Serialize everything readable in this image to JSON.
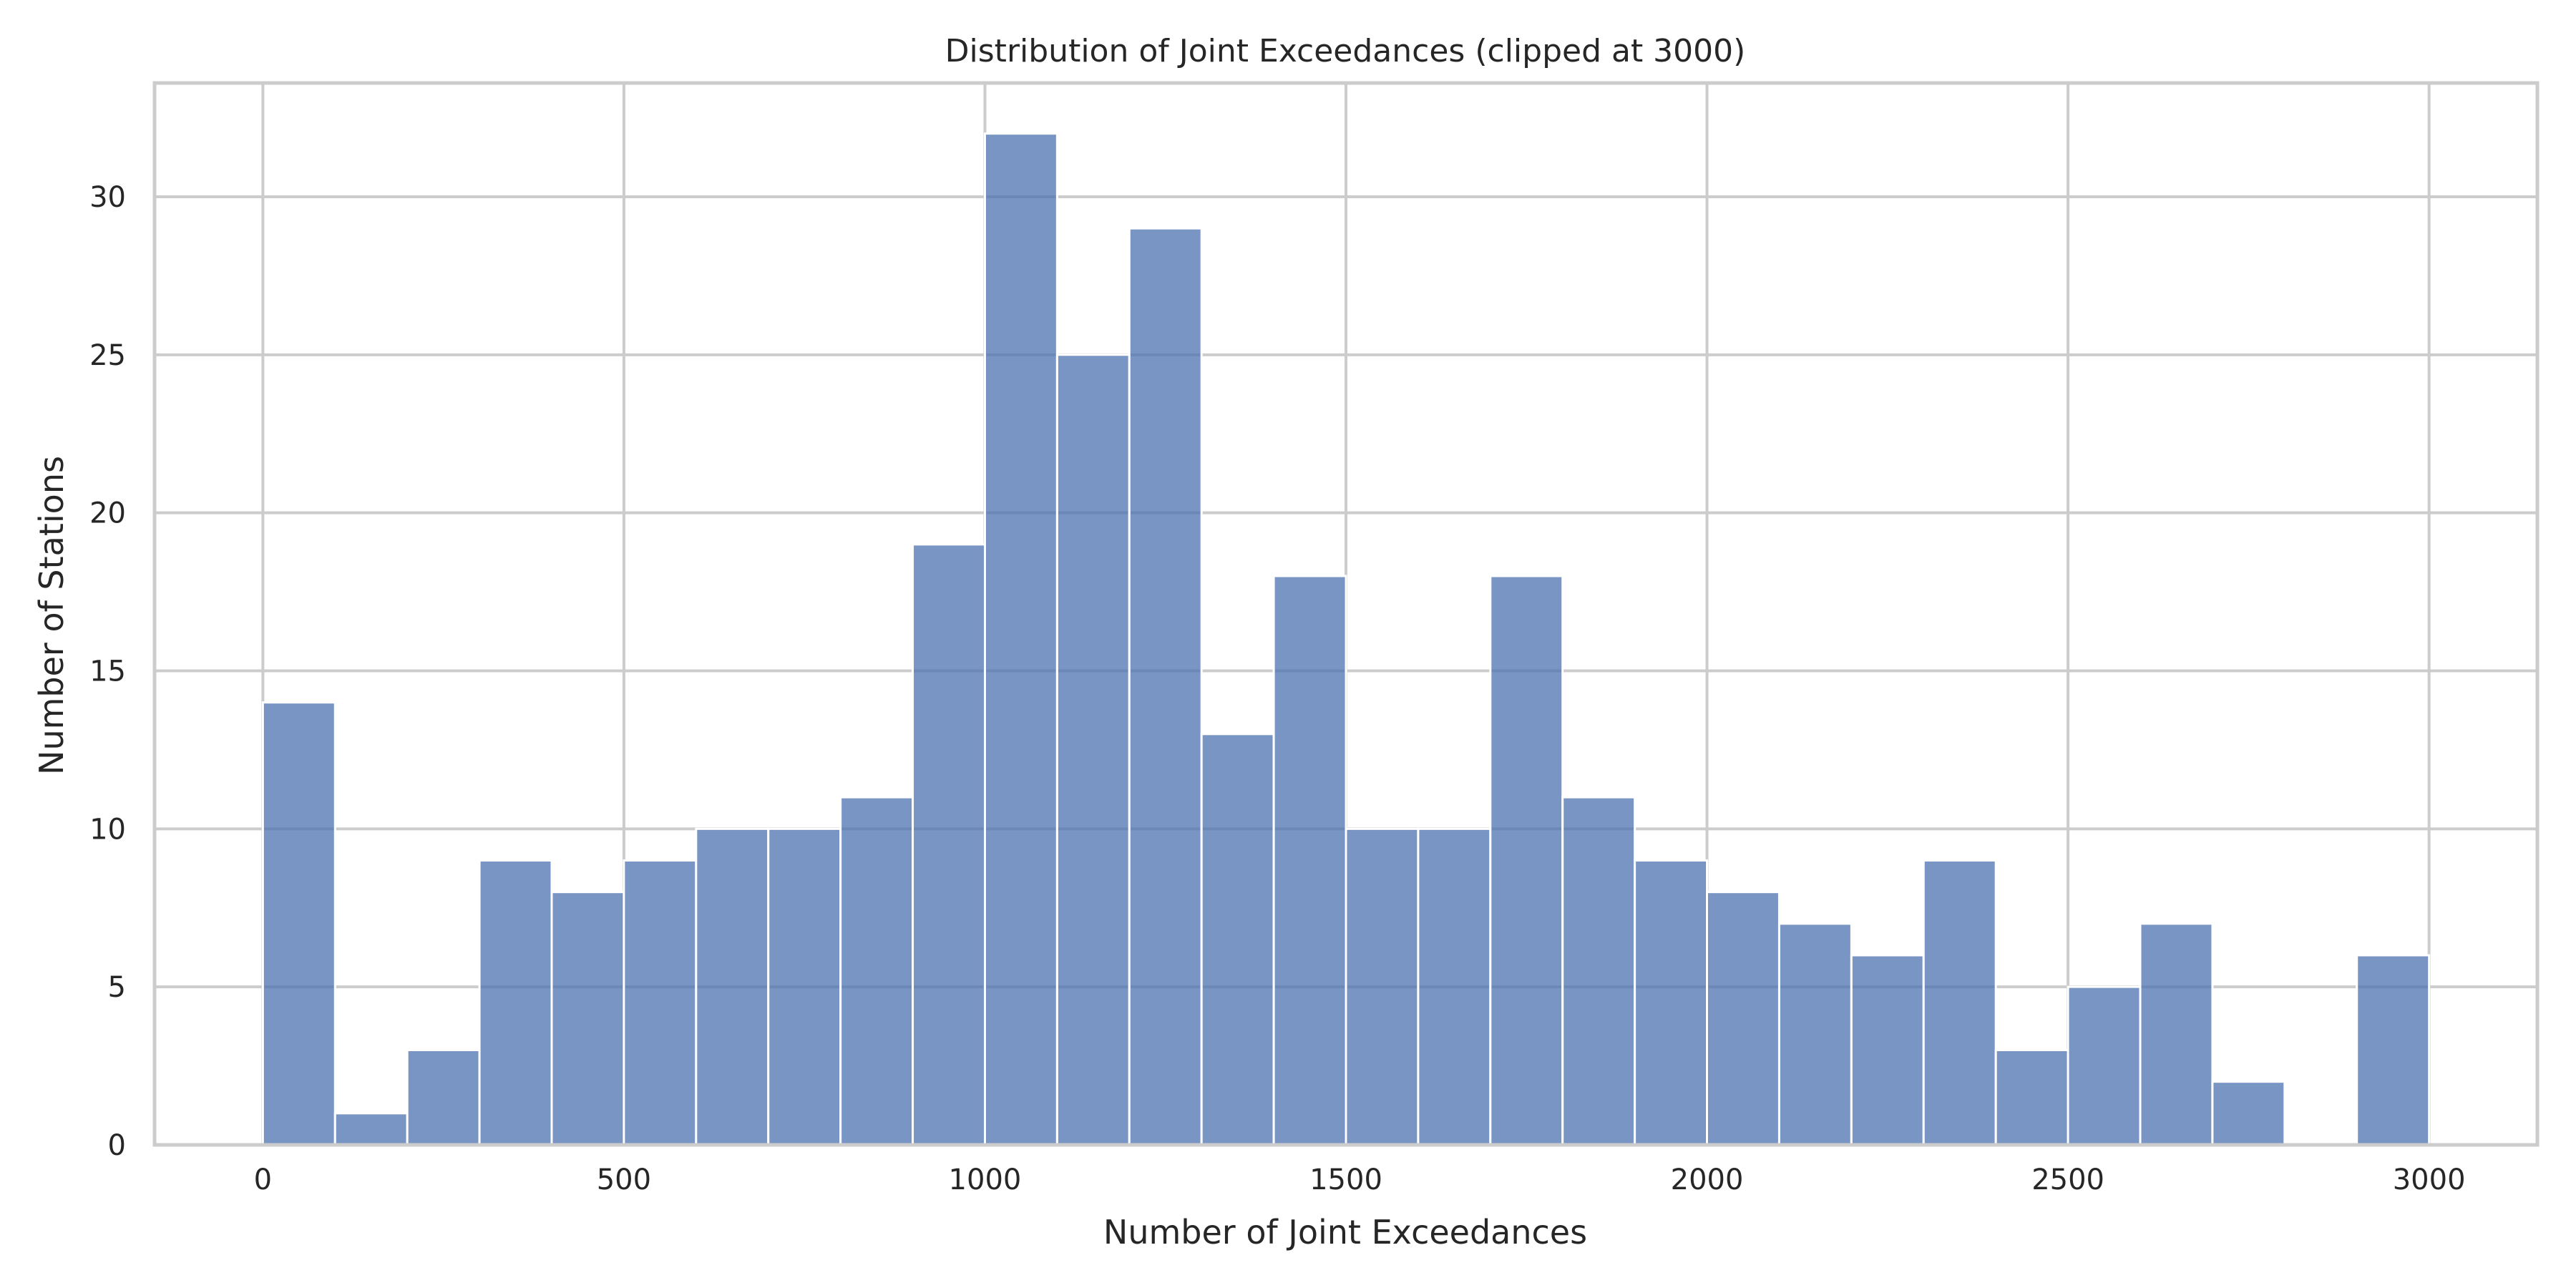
{
  "chart_data": {
    "type": "bar",
    "title": "Distribution of Joint Exceedances (clipped at 3000)",
    "xlabel": "Number of Joint Exceedances",
    "ylabel": "Number of Stations",
    "xlim": [
      -150,
      3150
    ],
    "ylim": [
      0,
      33.6
    ],
    "x_ticks": [
      0,
      500,
      1000,
      1500,
      2000,
      2500,
      3000
    ],
    "y_ticks": [
      0,
      5,
      10,
      15,
      20,
      25,
      30
    ],
    "grid": true,
    "bin_width": 100,
    "bins": [
      {
        "start": 0,
        "count": 14
      },
      {
        "start": 100,
        "count": 1
      },
      {
        "start": 200,
        "count": 3
      },
      {
        "start": 300,
        "count": 9
      },
      {
        "start": 400,
        "count": 8
      },
      {
        "start": 500,
        "count": 9
      },
      {
        "start": 600,
        "count": 10
      },
      {
        "start": 700,
        "count": 10
      },
      {
        "start": 800,
        "count": 11
      },
      {
        "start": 900,
        "count": 19
      },
      {
        "start": 1000,
        "count": 32
      },
      {
        "start": 1100,
        "count": 25
      },
      {
        "start": 1200,
        "count": 29
      },
      {
        "start": 1300,
        "count": 13
      },
      {
        "start": 1400,
        "count": 18
      },
      {
        "start": 1500,
        "count": 10
      },
      {
        "start": 1600,
        "count": 10
      },
      {
        "start": 1700,
        "count": 18
      },
      {
        "start": 1800,
        "count": 11
      },
      {
        "start": 1900,
        "count": 9
      },
      {
        "start": 2000,
        "count": 8
      },
      {
        "start": 2100,
        "count": 7
      },
      {
        "start": 2200,
        "count": 6
      },
      {
        "start": 2300,
        "count": 9
      },
      {
        "start": 2400,
        "count": 3
      },
      {
        "start": 2500,
        "count": 5
      },
      {
        "start": 2600,
        "count": 7
      },
      {
        "start": 2700,
        "count": 2
      },
      {
        "start": 2800,
        "count": 0
      },
      {
        "start": 2900,
        "count": 6
      }
    ],
    "colors": {
      "bar": "#4c72b0",
      "grid": "#cccccc",
      "text": "#262626"
    }
  }
}
